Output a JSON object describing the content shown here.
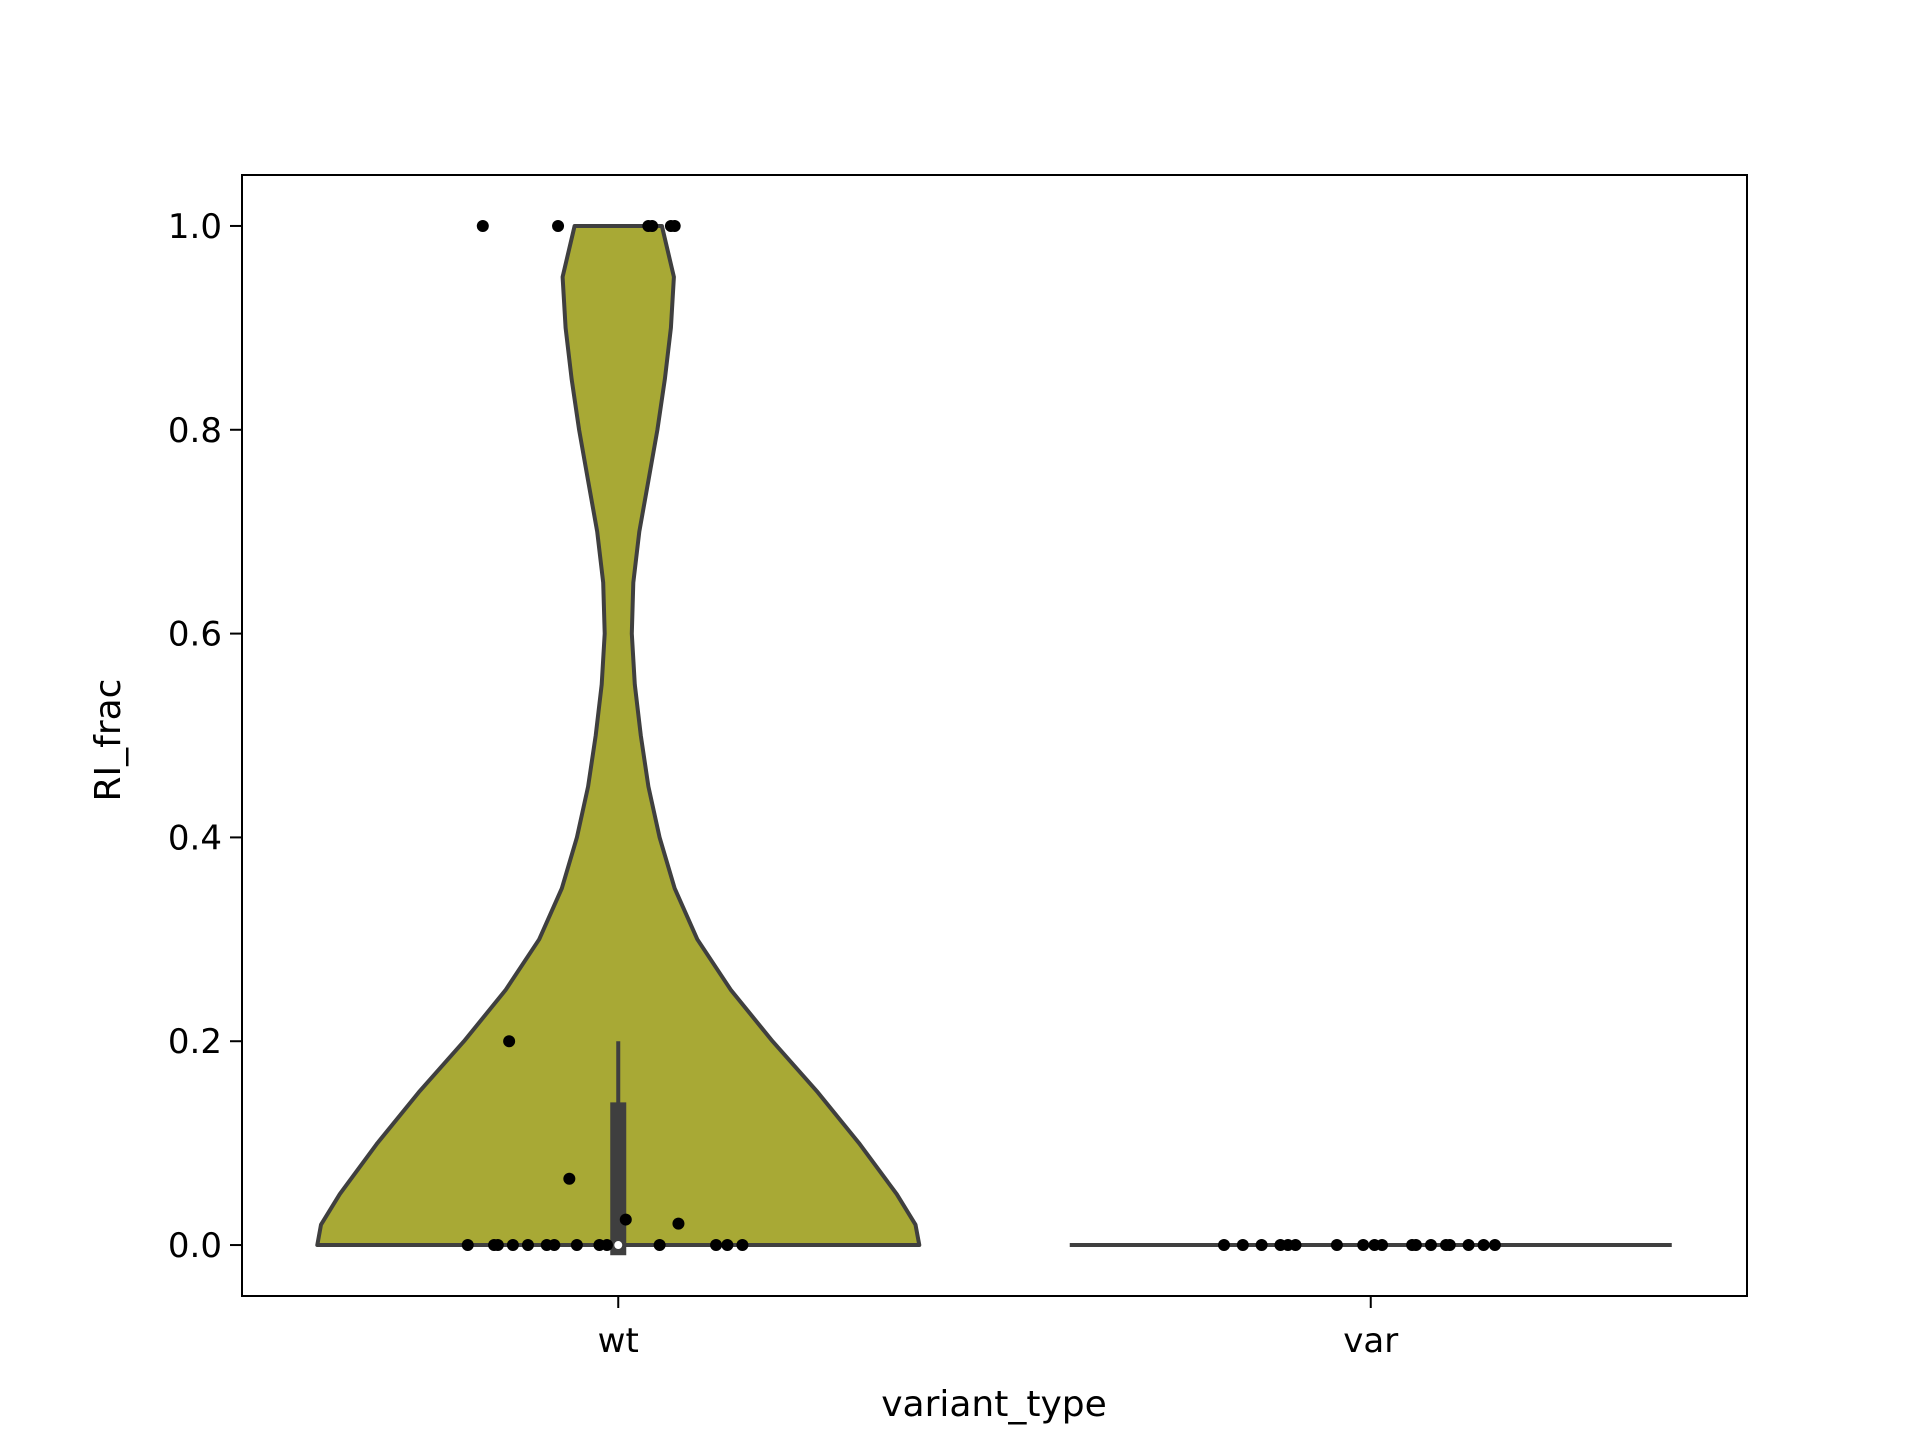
{
  "chart_data": {
    "type": "violin",
    "xlabel": "variant_type",
    "ylabel": "RI_frac",
    "categories": [
      "wt",
      "var"
    ],
    "ylim": [
      -0.05,
      1.05
    ],
    "yticks": [
      0.0,
      0.2,
      0.4,
      0.6,
      0.8,
      1.0
    ],
    "ytick_labels": [
      "0.0",
      "0.2",
      "0.4",
      "0.6",
      "0.8",
      "1.0"
    ],
    "violin_color": "#a8a935",
    "edge_color": "#3f3f3f",
    "point_color": "#000000",
    "grid": false,
    "legend": false,
    "groups": [
      {
        "category": "wt",
        "quartiles": {
          "q1": -0.01,
          "median": 0.0,
          "q3": 0.14
        },
        "whiskers": [
          0.0,
          0.2
        ],
        "points": [
          {
            "x_jitter": -0.18,
            "y": 1.0
          },
          {
            "x_jitter": -0.08,
            "y": 1.0
          },
          {
            "x_jitter": 0.04,
            "y": 1.0
          },
          {
            "x_jitter": 0.045,
            "y": 1.0
          },
          {
            "x_jitter": 0.07,
            "y": 1.0
          },
          {
            "x_jitter": 0.075,
            "y": 1.0
          },
          {
            "x_jitter": -0.145,
            "y": 0.2
          },
          {
            "x_jitter": -0.065,
            "y": 0.065
          },
          {
            "x_jitter": 0.01,
            "y": 0.025
          },
          {
            "x_jitter": 0.08,
            "y": 0.021
          },
          {
            "x_jitter": -0.2,
            "y": 0.0
          },
          {
            "x_jitter": -0.165,
            "y": 0.0
          },
          {
            "x_jitter": -0.16,
            "y": 0.0
          },
          {
            "x_jitter": -0.14,
            "y": 0.0
          },
          {
            "x_jitter": -0.12,
            "y": 0.0
          },
          {
            "x_jitter": -0.095,
            "y": 0.0
          },
          {
            "x_jitter": -0.085,
            "y": 0.0
          },
          {
            "x_jitter": -0.055,
            "y": 0.0
          },
          {
            "x_jitter": -0.025,
            "y": 0.0
          },
          {
            "x_jitter": -0.015,
            "y": 0.0
          },
          {
            "x_jitter": 0.055,
            "y": 0.0
          },
          {
            "x_jitter": 0.13,
            "y": 0.0
          },
          {
            "x_jitter": 0.145,
            "y": 0.0
          },
          {
            "x_jitter": 0.165,
            "y": 0.0
          }
        ],
        "density": [
          [
            0.0,
            0.4
          ],
          [
            0.02,
            0.395
          ],
          [
            0.05,
            0.37
          ],
          [
            0.1,
            0.32
          ],
          [
            0.15,
            0.265
          ],
          [
            0.2,
            0.205
          ],
          [
            0.25,
            0.15
          ],
          [
            0.3,
            0.105
          ],
          [
            0.35,
            0.075
          ],
          [
            0.4,
            0.055
          ],
          [
            0.45,
            0.04
          ],
          [
            0.5,
            0.03
          ],
          [
            0.55,
            0.022
          ],
          [
            0.6,
            0.018
          ],
          [
            0.65,
            0.02
          ],
          [
            0.7,
            0.028
          ],
          [
            0.75,
            0.04
          ],
          [
            0.8,
            0.052
          ],
          [
            0.85,
            0.062
          ],
          [
            0.9,
            0.07
          ],
          [
            0.95,
            0.074
          ],
          [
            1.0,
            0.058
          ]
        ]
      },
      {
        "category": "var",
        "quartiles": {
          "q1": 0.0,
          "median": 0.0,
          "q3": 0.0
        },
        "whiskers": [
          0.0,
          0.0
        ],
        "points": [
          {
            "x_jitter": -0.195,
            "y": 0.0
          },
          {
            "x_jitter": -0.17,
            "y": 0.0
          },
          {
            "x_jitter": -0.145,
            "y": 0.0
          },
          {
            "x_jitter": -0.12,
            "y": 0.0
          },
          {
            "x_jitter": -0.11,
            "y": 0.0
          },
          {
            "x_jitter": -0.1,
            "y": 0.0
          },
          {
            "x_jitter": -0.045,
            "y": 0.0
          },
          {
            "x_jitter": -0.01,
            "y": 0.0
          },
          {
            "x_jitter": 0.005,
            "y": 0.0
          },
          {
            "x_jitter": 0.015,
            "y": 0.0
          },
          {
            "x_jitter": 0.055,
            "y": 0.0
          },
          {
            "x_jitter": 0.06,
            "y": 0.0
          },
          {
            "x_jitter": 0.08,
            "y": 0.0
          },
          {
            "x_jitter": 0.1,
            "y": 0.0
          },
          {
            "x_jitter": 0.105,
            "y": 0.0
          },
          {
            "x_jitter": 0.13,
            "y": 0.0
          },
          {
            "x_jitter": 0.15,
            "y": 0.0
          },
          {
            "x_jitter": 0.165,
            "y": 0.0
          }
        ],
        "density": [
          [
            0.0,
            0.4
          ]
        ]
      }
    ]
  }
}
